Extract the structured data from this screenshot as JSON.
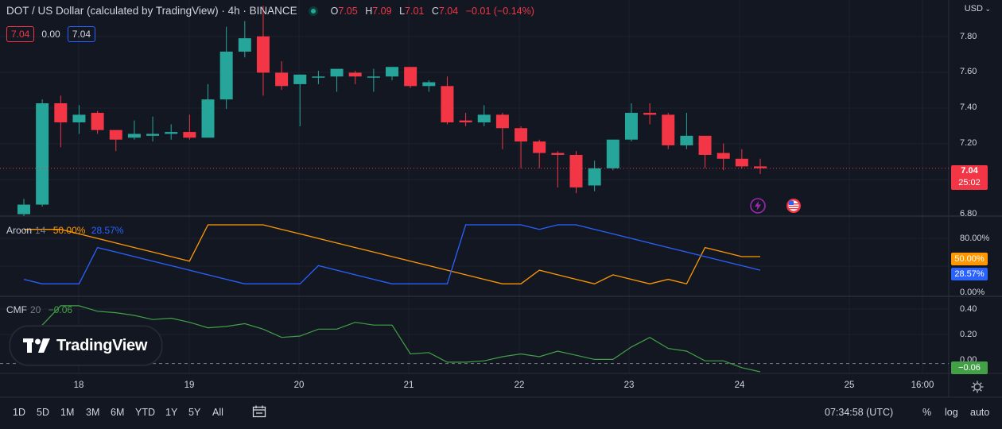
{
  "header": {
    "symbol_title": "DOT / US Dollar (calculated by TradingView) · 4h · BINANCE",
    "open_label": "O",
    "open": "7.05",
    "high_label": "H",
    "high": "7.09",
    "low_label": "L",
    "low": "7.01",
    "close_label": "C",
    "close": "7.04",
    "change": "−0.01 (−0.14%)",
    "sell_price": "7.04",
    "spread": "0.00",
    "buy_price": "7.04"
  },
  "price_axis": {
    "currency": "USD",
    "ticks": [
      "7.80",
      "7.60",
      "7.40",
      "7.20",
      "6.80"
    ],
    "last_price": "7.04",
    "countdown": "25:02"
  },
  "aroon": {
    "name": "Aroon",
    "param": "14",
    "up_value": "50.00%",
    "down_value": "28.57%",
    "ticks": [
      "80.00%",
      "0.00%"
    ],
    "tag_up": "50.00%",
    "tag_down": "28.57%"
  },
  "cmf": {
    "name": "CMF",
    "param": "20",
    "value": "−0.06",
    "ticks": [
      "0.40",
      "0.20",
      "0.00"
    ],
    "tag": "−0.06"
  },
  "time_axis": {
    "labels": [
      "18",
      "19",
      "20",
      "21",
      "22",
      "23",
      "24",
      "25",
      "16:00"
    ]
  },
  "bottom_bar": {
    "timeframes": [
      "1D",
      "5D",
      "1M",
      "3M",
      "6M",
      "YTD",
      "1Y",
      "5Y",
      "All"
    ],
    "clock": "07:34:58 (UTC)",
    "percent": "%",
    "log": "log",
    "auto": "auto"
  },
  "logo_text": "TradingView",
  "colors": {
    "background": "#131722",
    "up": "#26a69a",
    "down": "#f23645",
    "aroon_up": "#ff9800",
    "aroon_down": "#2962ff",
    "cmf_line": "#43a047",
    "grid": "#1e222d"
  },
  "chart_data": [
    {
      "type": "candlestick",
      "title": "DOT / US Dollar (calculated by TradingView) · 4h · BINANCE",
      "ylim": [
        6.79,
        7.92
      ],
      "x_ticks": [
        "18",
        "19",
        "20",
        "21",
        "22",
        "23",
        "24",
        "25",
        "16:00"
      ],
      "candles": [
        {
          "o": 6.8,
          "h": 6.88,
          "l": 6.79,
          "c": 6.85
        },
        {
          "o": 6.85,
          "h": 7.4,
          "l": 6.84,
          "c": 7.38
        },
        {
          "o": 7.38,
          "h": 7.42,
          "l": 7.15,
          "c": 7.28
        },
        {
          "o": 7.28,
          "h": 7.37,
          "l": 7.22,
          "c": 7.32
        },
        {
          "o": 7.33,
          "h": 7.34,
          "l": 7.22,
          "c": 7.24
        },
        {
          "o": 7.24,
          "h": 7.24,
          "l": 7.13,
          "c": 7.19
        },
        {
          "o": 7.2,
          "h": 7.29,
          "l": 7.19,
          "c": 7.22
        },
        {
          "o": 7.21,
          "h": 7.31,
          "l": 7.18,
          "c": 7.22
        },
        {
          "o": 7.22,
          "h": 7.27,
          "l": 7.19,
          "c": 7.23
        },
        {
          "o": 7.23,
          "h": 7.32,
          "l": 7.19,
          "c": 7.2
        },
        {
          "o": 7.2,
          "h": 7.48,
          "l": 7.2,
          "c": 7.4
        },
        {
          "o": 7.4,
          "h": 7.78,
          "l": 7.35,
          "c": 7.65
        },
        {
          "o": 7.65,
          "h": 7.81,
          "l": 7.62,
          "c": 7.72
        },
        {
          "o": 7.73,
          "h": 7.89,
          "l": 7.42,
          "c": 7.54
        },
        {
          "o": 7.54,
          "h": 7.6,
          "l": 7.45,
          "c": 7.47
        },
        {
          "o": 7.48,
          "h": 7.53,
          "l": 7.26,
          "c": 7.53
        },
        {
          "o": 7.52,
          "h": 7.55,
          "l": 7.48,
          "c": 7.52
        },
        {
          "o": 7.52,
          "h": 7.56,
          "l": 7.44,
          "c": 7.56
        },
        {
          "o": 7.54,
          "h": 7.55,
          "l": 7.48,
          "c": 7.52
        },
        {
          "o": 7.52,
          "h": 7.56,
          "l": 7.44,
          "c": 7.52
        },
        {
          "o": 7.52,
          "h": 7.57,
          "l": 7.5,
          "c": 7.57
        },
        {
          "o": 7.57,
          "h": 7.57,
          "l": 7.46,
          "c": 7.47
        },
        {
          "o": 7.47,
          "h": 7.5,
          "l": 7.44,
          "c": 7.49
        },
        {
          "o": 7.47,
          "h": 7.52,
          "l": 7.27,
          "c": 7.28
        },
        {
          "o": 7.29,
          "h": 7.33,
          "l": 7.26,
          "c": 7.28
        },
        {
          "o": 7.28,
          "h": 7.37,
          "l": 7.26,
          "c": 7.32
        },
        {
          "o": 7.32,
          "h": 7.33,
          "l": 7.14,
          "c": 7.25
        },
        {
          "o": 7.25,
          "h": 7.26,
          "l": 7.04,
          "c": 7.18
        },
        {
          "o": 7.18,
          "h": 7.19,
          "l": 7.04,
          "c": 7.12
        },
        {
          "o": 7.12,
          "h": 7.13,
          "l": 6.94,
          "c": 7.11
        },
        {
          "o": 7.11,
          "h": 7.13,
          "l": 6.91,
          "c": 6.94
        },
        {
          "o": 6.95,
          "h": 7.08,
          "l": 6.92,
          "c": 7.04
        },
        {
          "o": 7.04,
          "h": 7.19,
          "l": 7.03,
          "c": 7.19
        },
        {
          "o": 7.19,
          "h": 7.38,
          "l": 7.18,
          "c": 7.33
        },
        {
          "o": 7.33,
          "h": 7.38,
          "l": 7.27,
          "c": 7.32
        },
        {
          "o": 7.32,
          "h": 7.33,
          "l": 7.14,
          "c": 7.16
        },
        {
          "o": 7.16,
          "h": 7.33,
          "l": 7.14,
          "c": 7.21
        },
        {
          "o": 7.21,
          "h": 7.21,
          "l": 7.04,
          "c": 7.11
        },
        {
          "o": 7.12,
          "h": 7.17,
          "l": 7.03,
          "c": 7.09
        },
        {
          "o": 7.09,
          "h": 7.14,
          "l": 7.04,
          "c": 7.05
        },
        {
          "o": 7.05,
          "h": 7.09,
          "l": 7.01,
          "c": 7.04
        }
      ]
    },
    {
      "type": "line",
      "title": "Aroon 14",
      "ylim": [
        0,
        100
      ],
      "series": [
        {
          "name": "Aroon Up",
          "values": [
            92.9,
            92.9,
            92.9,
            85.7,
            78.6,
            71.4,
            64.3,
            57.1,
            50.0,
            42.9,
            100,
            100,
            100,
            100,
            92.9,
            85.7,
            78.6,
            71.4,
            64.3,
            57.1,
            50.0,
            42.9,
            35.7,
            28.6,
            21.4,
            14.3,
            7.1,
            7.1,
            28.6,
            21.4,
            14.3,
            7.1,
            21.4,
            14.3,
            7.1,
            14.3,
            7.1,
            64.3,
            57.1,
            50.0,
            50.0
          ]
        },
        {
          "name": "Aroon Down",
          "values": [
            14.3,
            7.1,
            7.1,
            7.1,
            64.3,
            57.1,
            50.0,
            42.9,
            35.7,
            28.6,
            21.4,
            14.3,
            7.1,
            7.1,
            7.1,
            7.1,
            35.7,
            28.6,
            21.4,
            14.3,
            7.1,
            7.1,
            7.1,
            7.1,
            100,
            100,
            100,
            100,
            92.9,
            100,
            100,
            92.9,
            85.7,
            78.6,
            71.4,
            64.3,
            57.1,
            50.0,
            42.9,
            35.7,
            28.57
          ]
        }
      ]
    },
    {
      "type": "line",
      "title": "CMF 20",
      "ylim": [
        -0.06,
        0.46
      ],
      "series": [
        {
          "name": "CMF",
          "values": [
            0.22,
            0.28,
            0.42,
            0.42,
            0.38,
            0.37,
            0.35,
            0.32,
            0.33,
            0.3,
            0.26,
            0.27,
            0.29,
            0.25,
            0.19,
            0.2,
            0.25,
            0.25,
            0.3,
            0.28,
            0.28,
            0.07,
            0.08,
            0.01,
            0.01,
            0.02,
            0.05,
            0.07,
            0.05,
            0.09,
            0.06,
            0.03,
            0.03,
            0.12,
            0.19,
            0.11,
            0.09,
            0.02,
            0.02,
            -0.03,
            -0.06
          ]
        }
      ]
    }
  ]
}
